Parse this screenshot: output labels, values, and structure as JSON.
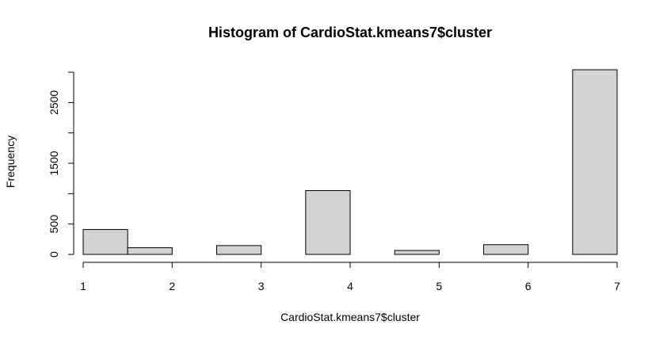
{
  "chart_data": {
    "type": "bar",
    "title": "Histogram of CardioStat.kmeans7$cluster",
    "xlabel": "CardioStat.kmeans7$cluster",
    "ylabel": "Frequency",
    "bins": [
      {
        "x0": 1.0,
        "x1": 1.5,
        "value": 410
      },
      {
        "x0": 1.5,
        "x1": 2.0,
        "value": 110
      },
      {
        "x0": 2.0,
        "x1": 2.5,
        "value": 0
      },
      {
        "x0": 2.5,
        "x1": 3.0,
        "value": 145
      },
      {
        "x0": 3.0,
        "x1": 3.5,
        "value": 0
      },
      {
        "x0": 3.5,
        "x1": 4.0,
        "value": 1050
      },
      {
        "x0": 4.0,
        "x1": 4.5,
        "value": 0
      },
      {
        "x0": 4.5,
        "x1": 5.0,
        "value": 65
      },
      {
        "x0": 5.0,
        "x1": 5.5,
        "value": 0
      },
      {
        "x0": 5.5,
        "x1": 6.0,
        "value": 160
      },
      {
        "x0": 6.0,
        "x1": 6.5,
        "value": 0
      },
      {
        "x0": 6.5,
        "x1": 7.0,
        "value": 3040
      }
    ],
    "xlim": [
      1,
      7
    ],
    "ylim": [
      0,
      3040
    ],
    "xticks": [
      1,
      2,
      3,
      4,
      5,
      6,
      7
    ],
    "yticks": [
      0,
      500,
      1500,
      2500
    ],
    "yaxis_max": 3000,
    "grid": false,
    "legend": "none"
  }
}
